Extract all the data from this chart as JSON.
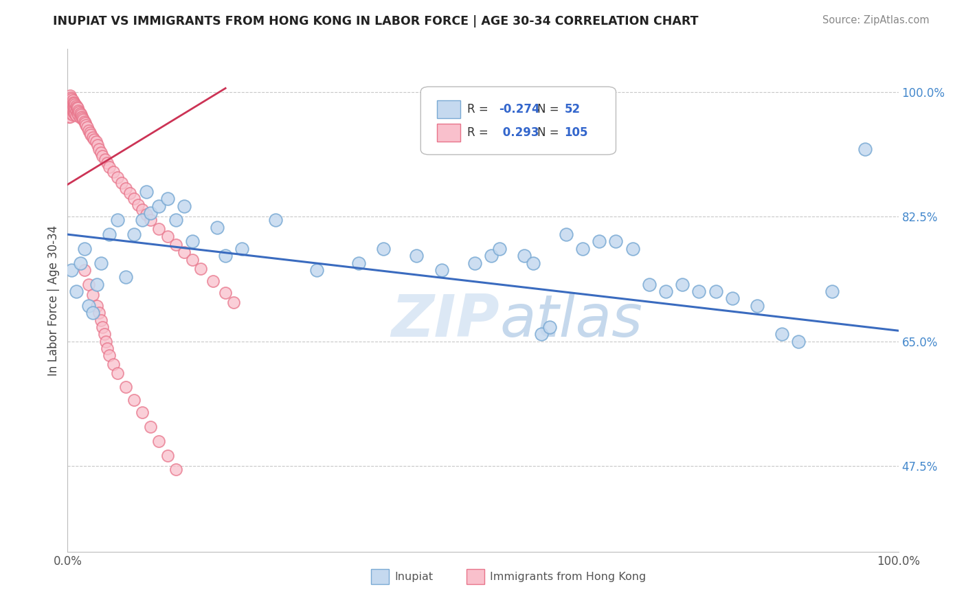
{
  "title": "INUPIAT VS IMMIGRANTS FROM HONG KONG IN LABOR FORCE | AGE 30-34 CORRELATION CHART",
  "source": "Source: ZipAtlas.com",
  "ylabel": "In Labor Force | Age 30-34",
  "xlim": [
    0.0,
    1.0
  ],
  "ylim": [
    0.355,
    1.06
  ],
  "ytick_values": [
    0.475,
    0.65,
    0.825,
    1.0
  ],
  "ytick_labels": [
    "47.5%",
    "65.0%",
    "82.5%",
    "100.0%"
  ],
  "xtick_values": [
    0.0,
    1.0
  ],
  "xtick_labels": [
    "0.0%",
    "100.0%"
  ],
  "inupiat_color_face": "#c5d9ef",
  "inupiat_color_edge": "#7aaad4",
  "hk_color_face": "#f9c0cc",
  "hk_color_edge": "#e8748a",
  "trendline_inupiat_color": "#3a6bbf",
  "trendline_hk_color": "#cc3355",
  "watermark_color": "#dce8f5",
  "legend_box_color": "#dddddd",
  "inupiat_x": [
    0.005,
    0.01,
    0.015,
    0.02,
    0.025,
    0.03,
    0.035,
    0.04,
    0.05,
    0.06,
    0.07,
    0.08,
    0.09,
    0.095,
    0.1,
    0.11,
    0.12,
    0.13,
    0.14,
    0.15,
    0.18,
    0.19,
    0.21,
    0.25,
    0.3,
    0.35,
    0.38,
    0.42,
    0.45,
    0.49,
    0.51,
    0.52,
    0.55,
    0.56,
    0.57,
    0.58,
    0.6,
    0.62,
    0.64,
    0.66,
    0.68,
    0.7,
    0.72,
    0.74,
    0.76,
    0.78,
    0.8,
    0.83,
    0.86,
    0.88,
    0.92,
    0.96
  ],
  "inupiat_y": [
    0.75,
    0.72,
    0.76,
    0.78,
    0.7,
    0.69,
    0.73,
    0.76,
    0.8,
    0.82,
    0.74,
    0.8,
    0.82,
    0.86,
    0.83,
    0.84,
    0.85,
    0.82,
    0.84,
    0.79,
    0.81,
    0.77,
    0.78,
    0.82,
    0.75,
    0.76,
    0.78,
    0.77,
    0.75,
    0.76,
    0.77,
    0.78,
    0.77,
    0.76,
    0.66,
    0.67,
    0.8,
    0.78,
    0.79,
    0.79,
    0.78,
    0.73,
    0.72,
    0.73,
    0.72,
    0.72,
    0.71,
    0.7,
    0.66,
    0.65,
    0.72,
    0.92
  ],
  "hk_x": [
    0.001,
    0.001,
    0.001,
    0.001,
    0.001,
    0.002,
    0.002,
    0.002,
    0.002,
    0.003,
    0.003,
    0.003,
    0.003,
    0.003,
    0.004,
    0.004,
    0.004,
    0.004,
    0.005,
    0.005,
    0.005,
    0.006,
    0.006,
    0.006,
    0.006,
    0.007,
    0.007,
    0.007,
    0.008,
    0.008,
    0.008,
    0.009,
    0.009,
    0.009,
    0.01,
    0.01,
    0.01,
    0.011,
    0.012,
    0.012,
    0.013,
    0.013,
    0.014,
    0.015,
    0.015,
    0.016,
    0.017,
    0.018,
    0.019,
    0.02,
    0.021,
    0.022,
    0.024,
    0.025,
    0.027,
    0.028,
    0.03,
    0.032,
    0.034,
    0.036,
    0.038,
    0.04,
    0.042,
    0.045,
    0.048,
    0.05,
    0.055,
    0.06,
    0.065,
    0.07,
    0.075,
    0.08,
    0.085,
    0.09,
    0.095,
    0.1,
    0.11,
    0.12,
    0.13,
    0.14,
    0.15,
    0.16,
    0.175,
    0.19,
    0.2,
    0.02,
    0.025,
    0.03,
    0.035,
    0.038,
    0.04,
    0.042,
    0.044,
    0.046,
    0.048,
    0.05,
    0.055,
    0.06,
    0.07,
    0.08,
    0.09,
    0.1,
    0.11,
    0.12,
    0.13
  ],
  "hk_y": [
    0.99,
    0.985,
    0.975,
    0.97,
    0.965,
    0.99,
    0.985,
    0.98,
    0.97,
    0.995,
    0.988,
    0.982,
    0.975,
    0.965,
    0.992,
    0.986,
    0.979,
    0.97,
    0.99,
    0.984,
    0.975,
    0.988,
    0.982,
    0.976,
    0.968,
    0.985,
    0.979,
    0.972,
    0.984,
    0.978,
    0.971,
    0.982,
    0.976,
    0.969,
    0.98,
    0.974,
    0.967,
    0.978,
    0.977,
    0.97,
    0.974,
    0.968,
    0.972,
    0.97,
    0.964,
    0.968,
    0.965,
    0.963,
    0.961,
    0.958,
    0.956,
    0.953,
    0.95,
    0.946,
    0.943,
    0.94,
    0.936,
    0.933,
    0.93,
    0.925,
    0.92,
    0.915,
    0.91,
    0.905,
    0.9,
    0.895,
    0.888,
    0.88,
    0.872,
    0.865,
    0.858,
    0.85,
    0.842,
    0.835,
    0.828,
    0.82,
    0.808,
    0.797,
    0.786,
    0.775,
    0.764,
    0.752,
    0.735,
    0.718,
    0.705,
    0.75,
    0.73,
    0.715,
    0.7,
    0.69,
    0.68,
    0.67,
    0.66,
    0.65,
    0.64,
    0.63,
    0.618,
    0.605,
    0.586,
    0.568,
    0.55,
    0.53,
    0.51,
    0.49,
    0.47
  ],
  "trendline_inupiat_x0": 0.0,
  "trendline_inupiat_x1": 1.0,
  "trendline_inupiat_y0": 0.8,
  "trendline_inupiat_y1": 0.665,
  "trendline_hk_x0": 0.0,
  "trendline_hk_x1": 0.19,
  "trendline_hk_y0": 0.87,
  "trendline_hk_y1": 1.005
}
